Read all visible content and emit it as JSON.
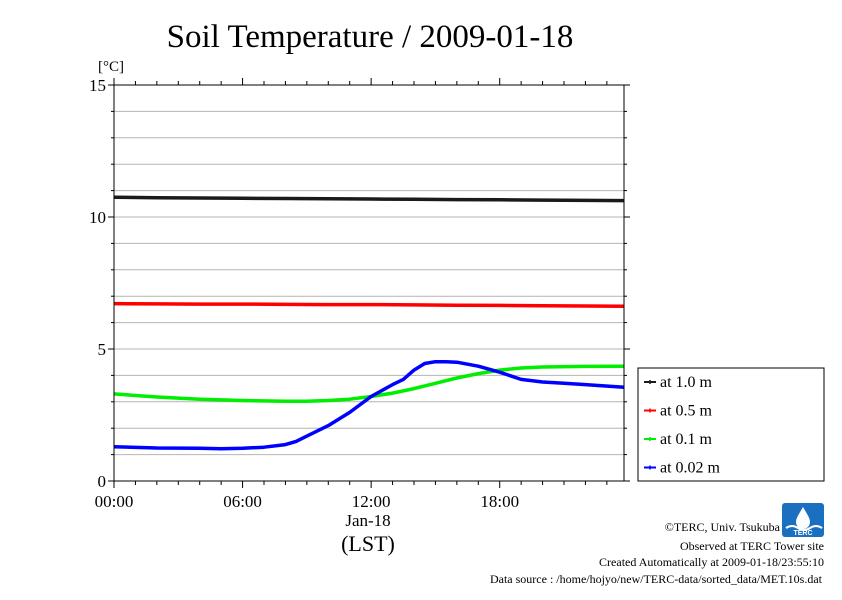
{
  "chart_data": {
    "type": "line",
    "title": "Soil Temperature / 2009-01-18",
    "ylabel": "[°C]",
    "xlabel": "(LST)",
    "date_label": "Jan-18",
    "ylim": [
      0,
      15
    ],
    "xlim": [
      0,
      23.8
    ],
    "y_ticks": [
      0,
      5,
      10,
      15
    ],
    "y_minor_step": 1,
    "x_ticks": [
      {
        "value": 0,
        "label": "00:00"
      },
      {
        "value": 6,
        "label": "06:00"
      },
      {
        "value": 12,
        "label": "12:00"
      },
      {
        "value": 18,
        "label": "18:00"
      }
    ],
    "grid": true,
    "legend_position": "right",
    "series": [
      {
        "name": "at 1.0 m",
        "color": "#1a1a1a",
        "x": [
          0,
          2,
          4,
          6,
          8,
          10,
          12,
          14,
          16,
          18,
          20,
          22,
          23.8
        ],
        "y": [
          10.75,
          10.73,
          10.72,
          10.71,
          10.7,
          10.69,
          10.68,
          10.67,
          10.66,
          10.65,
          10.64,
          10.63,
          10.62
        ]
      },
      {
        "name": "at 0.5 m",
        "color": "#ff0000",
        "x": [
          0,
          2,
          4,
          6,
          8,
          10,
          12,
          14,
          16,
          18,
          20,
          22,
          23.8
        ],
        "y": [
          6.72,
          6.71,
          6.7,
          6.7,
          6.69,
          6.68,
          6.68,
          6.67,
          6.66,
          6.65,
          6.64,
          6.63,
          6.62
        ]
      },
      {
        "name": "at 0.1 m",
        "color": "#00ee00",
        "x": [
          0,
          2,
          4,
          6,
          8,
          9,
          10,
          11,
          12,
          13,
          14,
          15,
          16,
          17,
          18,
          19,
          20,
          22,
          23.8
        ],
        "y": [
          3.3,
          3.18,
          3.1,
          3.05,
          3.02,
          3.02,
          3.05,
          3.1,
          3.2,
          3.33,
          3.5,
          3.7,
          3.9,
          4.07,
          4.2,
          4.28,
          4.32,
          4.34,
          4.35
        ]
      },
      {
        "name": "at 0.02 m",
        "color": "#0000ff",
        "x": [
          0,
          2,
          4,
          5,
          6,
          7,
          8,
          8.5,
          9,
          10,
          11,
          12,
          13,
          13.5,
          14,
          14.5,
          15,
          15.5,
          16,
          17,
          18,
          19,
          20,
          21,
          22,
          23.8
        ],
        "y": [
          1.3,
          1.25,
          1.24,
          1.22,
          1.24,
          1.28,
          1.38,
          1.5,
          1.7,
          2.1,
          2.6,
          3.2,
          3.65,
          3.85,
          4.2,
          4.45,
          4.52,
          4.52,
          4.5,
          4.35,
          4.12,
          3.85,
          3.75,
          3.7,
          3.65,
          3.55
        ]
      }
    ]
  },
  "credits": {
    "copyright": "©TERC, Univ. Tsukuba",
    "site": "Observed at TERC Tower site",
    "created": "Created Automatically at 2009-01-18/23:55:10",
    "source": "Data source : /home/hojyo/new/TERC-data/sorted_data/MET.10s.dat"
  },
  "logo": {
    "text": "TERC",
    "color": "#1a6fc0"
  }
}
